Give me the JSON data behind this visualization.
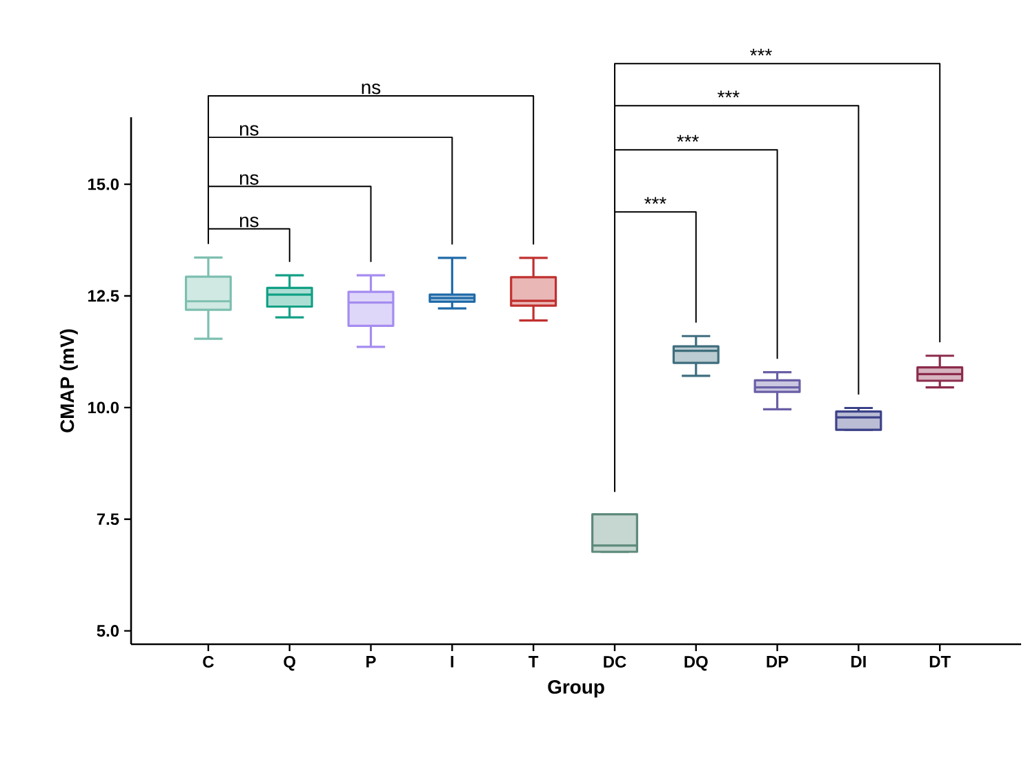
{
  "chart_data": {
    "type": "box",
    "xlabel": "Group",
    "ylabel": "CMAP (mV)",
    "categories": [
      "C",
      "Q",
      "P",
      "I",
      "T",
      "DC",
      "DQ",
      "DP",
      "DI",
      "DT"
    ],
    "boxes": [
      {
        "low": 11.54,
        "q1": 12.19,
        "median": 12.38,
        "q3": 12.93,
        "high": 13.36
      },
      {
        "low": 12.02,
        "q1": 12.26,
        "median": 12.53,
        "q3": 12.68,
        "high": 12.96
      },
      {
        "low": 11.36,
        "q1": 11.83,
        "median": 12.35,
        "q3": 12.59,
        "high": 12.96
      },
      {
        "low": 12.22,
        "q1": 12.37,
        "median": 12.45,
        "q3": 12.53,
        "high": 13.35
      },
      {
        "low": 11.95,
        "q1": 12.28,
        "median": 12.39,
        "q3": 12.92,
        "high": 13.35
      },
      {
        "low": 6.77,
        "q1": 6.77,
        "median": 6.91,
        "q3": 7.61,
        "high": 7.61
      },
      {
        "low": 10.71,
        "q1": 11.0,
        "median": 11.27,
        "q3": 11.37,
        "high": 11.6
      },
      {
        "low": 9.96,
        "q1": 10.35,
        "median": 10.45,
        "q3": 10.61,
        "high": 10.79
      },
      {
        "low": 9.5,
        "q1": 9.5,
        "median": 9.78,
        "q3": 9.91,
        "high": 9.99
      },
      {
        "low": 10.45,
        "q1": 10.6,
        "median": 10.75,
        "q3": 10.9,
        "high": 11.16
      }
    ],
    "colors": [
      "#7dbfb0",
      "#12a085",
      "#a58cf0",
      "#1f6aa8",
      "#c0302e",
      "#5d8a7b",
      "#3e6e7e",
      "#6a5fa6",
      "#3c4288",
      "#8c2c4c"
    ],
    "ylim": [
      4.7,
      16.5
    ],
    "yticks": [
      {
        "value": 5,
        "label": "5.0"
      },
      {
        "value": 7.5,
        "label": "7.5"
      },
      {
        "value": 10,
        "label": "10.0"
      },
      {
        "value": 12.5,
        "label": "12.5"
      },
      {
        "value": 15,
        "label": "15.0"
      }
    ],
    "annotations": [
      "ns",
      "ns",
      "ns",
      "ns",
      "***",
      "***",
      "***",
      "***"
    ]
  }
}
